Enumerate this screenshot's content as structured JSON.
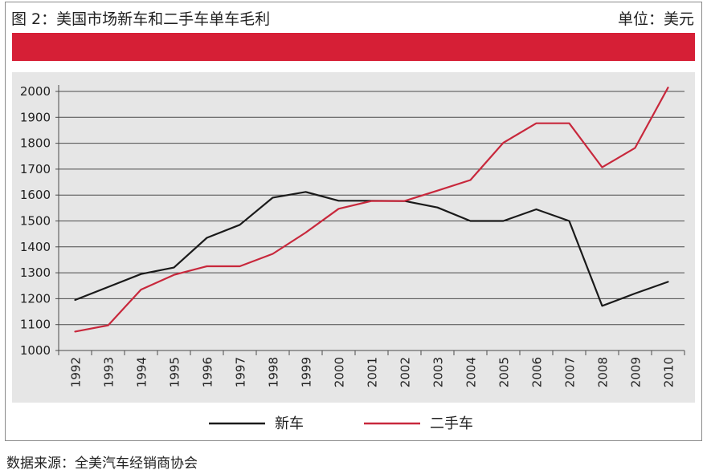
{
  "header": {
    "title": "图 2：美国市场新车和二手车单车毛利",
    "unit": "单位：美元"
  },
  "source": "数据来源：全美汽车经销商协会",
  "colors": {
    "band": "#d61f36",
    "new_car": "#1a1a1a",
    "used_car": "#c8283c",
    "plot_bg": "#e6e6e6"
  },
  "chart_data": {
    "type": "line",
    "title": "",
    "xlabel": "",
    "ylabel": "",
    "ylim": [
      1000,
      2000
    ],
    "yticks": [
      1000,
      1100,
      1200,
      1300,
      1400,
      1500,
      1600,
      1700,
      1800,
      1900,
      2000
    ],
    "grid": true,
    "legend_position": "bottom",
    "categories": [
      "1992",
      "1993",
      "1994",
      "1995",
      "1996",
      "1997",
      "1998",
      "1999",
      "2000",
      "2001",
      "2002",
      "2003",
      "2004",
      "2005",
      "2006",
      "2007",
      "2008",
      "2009",
      "2010"
    ],
    "series": [
      {
        "name": "新车",
        "color": "#1a1a1a",
        "values": [
          1195,
          1245,
          1295,
          1320,
          1435,
          1485,
          1590,
          1612,
          1578,
          1578,
          1577,
          1552,
          1500,
          1500,
          1545,
          1500,
          1172,
          1220,
          1265
        ]
      },
      {
        "name": "二手车",
        "color": "#c8283c",
        "values": [
          1073,
          1097,
          1235,
          1292,
          1325,
          1325,
          1373,
          1455,
          1547,
          1577,
          1577,
          1617,
          1658,
          1802,
          1877,
          1877,
          1707,
          1782,
          2015
        ]
      }
    ]
  }
}
